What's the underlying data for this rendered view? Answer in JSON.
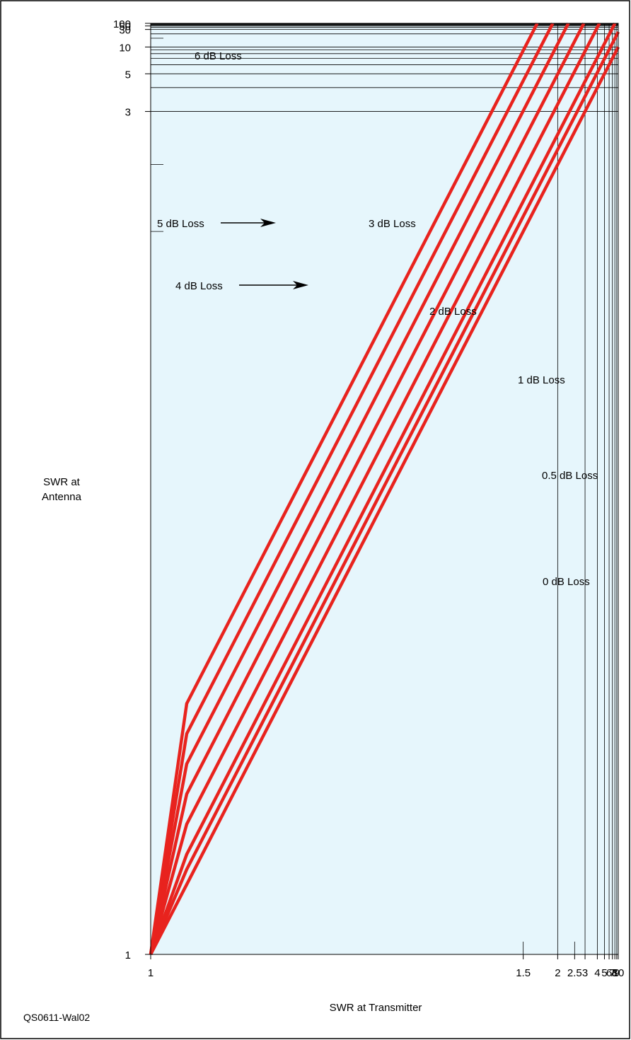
{
  "chart_data": {
    "type": "line",
    "x_axis": {
      "label": "SWR at Transmitter",
      "scale": "log-swr",
      "range": [
        1,
        10
      ],
      "tick_labels": [
        "1",
        "1.5",
        "2",
        "2.5",
        "3",
        "4",
        "5",
        "6",
        "7",
        "8",
        "9",
        "10"
      ],
      "tick_values": [
        1,
        1.5,
        2,
        2.5,
        3,
        4,
        5,
        6,
        7,
        8,
        9,
        10
      ]
    },
    "y_axis": {
      "label_line1": "SWR at",
      "label_line2": "Antenna",
      "scale": "log-swr",
      "range": [
        1,
        100
      ],
      "tick_labels": [
        "1",
        "3",
        "5",
        "10",
        "30",
        "50",
        "100"
      ],
      "tick_values": [
        1,
        3,
        5,
        10,
        30,
        50,
        100
      ]
    },
    "grid": true,
    "series": [
      {
        "name": "0 dB Loss",
        "loss_db": 0,
        "color": "#e8231e"
      },
      {
        "name": "0.5 dB Loss",
        "loss_db": 0.5,
        "color": "#e8231e"
      },
      {
        "name": "1 dB Loss",
        "loss_db": 1,
        "color": "#e8231e"
      },
      {
        "name": "2 dB Loss",
        "loss_db": 2,
        "color": "#e8231e"
      },
      {
        "name": "3 dB Loss",
        "loss_db": 3,
        "color": "#e8231e"
      },
      {
        "name": "4 dB Loss",
        "loss_db": 4,
        "color": "#e8231e"
      },
      {
        "name": "5 dB Loss",
        "loss_db": 5,
        "color": "#e8231e"
      },
      {
        "name": "6 dB Loss",
        "loss_db": 6,
        "color": "#e8231e"
      }
    ],
    "plot_background": "#e6f6fc"
  },
  "figure_id": "QS0611-Wal02"
}
